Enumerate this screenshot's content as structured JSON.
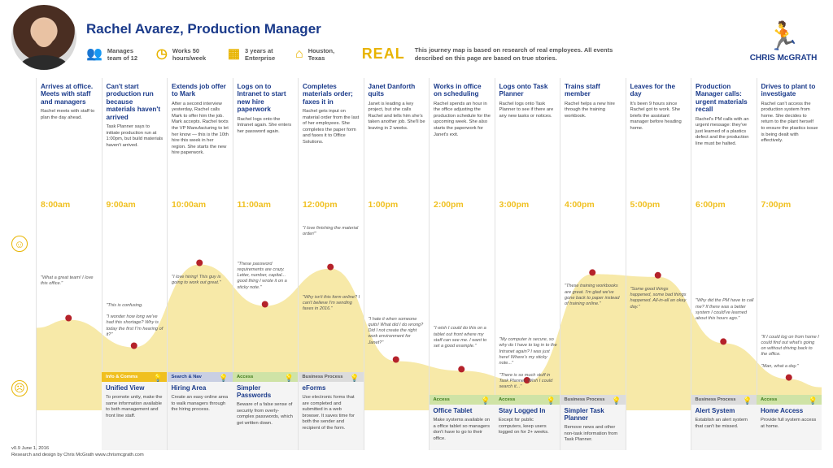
{
  "header": {
    "title": "Rachel Avarez, Production Manager",
    "stats": [
      {
        "icon": "group-icon",
        "glyph": "👥",
        "text": "Manages team of 12"
      },
      {
        "icon": "clock-icon",
        "glyph": "◷",
        "text": "Works 50 hours/week"
      },
      {
        "icon": "calendar-icon",
        "glyph": "▦",
        "text": "3 years at Enterprise"
      },
      {
        "icon": "house-icon",
        "glyph": "⌂",
        "text": "Houston, Texas"
      }
    ],
    "real_label": "REAL",
    "real_note": "This journey map is based on research of real employees. All events described on this page are based on true stories.",
    "brand": "CHRIS McGRATH"
  },
  "colors": {
    "accent": "#f0c020",
    "title": "#1a3a8a",
    "curve": "#f7e9a8",
    "dot": "#b5222a"
  },
  "columns": [
    {
      "title": "Arrives at office. Meets with staff and managers",
      "desc": "Rachel meets with staff to plan the day ahead.",
      "time": "8:00am"
    },
    {
      "title": "Can't start production run because materials haven't arrived",
      "desc": "Task Planner says to initiate production run at 1:00pm, but build materials haven't arrived.",
      "time": "9:00am"
    },
    {
      "title": "Extends job offer to Mark",
      "desc": "After a second interview yesterday, Rachel calls Mark to offer him the job. Mark accepts. Rachel texts the VP Manufacturing to let her know — this is the 10th hire this week in her region. She starts the new hire paperwork.",
      "time": "10:00am"
    },
    {
      "title": "Logs on to Intranet to start new hire paperwork",
      "desc": "Rachel logs onto the Intranet again. She enters her password again.",
      "time": "11:00am"
    },
    {
      "title": "Completes materials order; faxes it in",
      "desc": "Rachel gets input on material order from the last of her employees. She completes the paper form and faxes it to Office Solutions.",
      "time": "12:00pm"
    },
    {
      "title": "Janet Danforth quits",
      "desc": "Janet is leading a key project, but she calls Rachel and tells him she's taken another job. She'll be leaving in 2 weeks.",
      "time": "1:00pm"
    },
    {
      "title": "Works in office on scheduling",
      "desc": "Rachel spends an hour in the office adjusting the production schedule for the upcoming week. She also starts the paperwork for Janet's exit.",
      "time": "2:00pm"
    },
    {
      "title": "Logs onto Task Planner",
      "desc": "Rachel logs onto Task Planner to see if there are any new tasks or notices.",
      "time": "3:00pm"
    },
    {
      "title": "Trains staff member",
      "desc": "Rachel helps a new hire through the training workbook.",
      "time": "4:00pm"
    },
    {
      "title": "Leaves for the day",
      "desc": "It's been 9 hours since Rachel got to work. She briefs the assistant manager before heading home.",
      "time": "5:00pm"
    },
    {
      "title": "Production Manager calls: urgent materials recall",
      "desc": "Rachel's PM calls with an urgent message: they've just learned of a plastics defect and the production line must be halted.",
      "time": "6:00pm"
    },
    {
      "title": "Drives to plant to investigate",
      "desc": "Rachel can't access the production system from home. She decides to return to the plant herself to ensure the plastics issue is being dealt with effectively.",
      "time": "7:00pm"
    }
  ],
  "mood_levels": [
    0.45,
    0.25,
    0.85,
    0.55,
    0.82,
    0.15,
    0.08,
    0.0,
    0.78,
    0.76,
    0.28,
    0.02
  ],
  "quotes": [
    {
      "col": 0,
      "text": "\"What a great team! I love this office.\""
    },
    {
      "col": 1,
      "text": "\"This is confusing.\n\n\"I wonder how long we've had this shortage? Why is today the first I\"m hearing of it?\""
    },
    {
      "col": 2,
      "text": "\"I love hiring! This guy is going to work out great.\""
    },
    {
      "col": 3,
      "text": "\"These password requirements are crazy. Letter, number, capital... good thing I wrote it on a sticky note.\""
    },
    {
      "col": 4,
      "text": "\"I love finishing the material order!\""
    },
    {
      "col": 4,
      "text": "\"Why isn't this form online? I can't believe I'm sending faxes in 2016.\""
    },
    {
      "col": 5,
      "text": "\"I hate it when someone quits! What did I do wrong? Did I not create the right work environment for Janet?\""
    },
    {
      "col": 6,
      "text": "\"I wish I could do this on a tablet out front where my staff can see me. I want to set a good example.\""
    },
    {
      "col": 7,
      "text": "\"My computer is secure, so why do I have to log in to the Intranet again? I was just here! Where's my sticky note...\"\n\n\"There is so much stuff in Task Planner. Wish I could search it...\""
    },
    {
      "col": 8,
      "text": "\"These training workbooks are great. I'm glad we've gone back to paper instead of training online.\""
    },
    {
      "col": 9,
      "text": "\"Some good things happened, some bad things happened. All-in-all an okay day.\""
    },
    {
      "col": 10,
      "text": "\"Why did the PM have to call me? If there was a better system I could've learned about this hours ago.\""
    },
    {
      "col": 11,
      "text": "\"If I could log on from home I could find out what's going on without driving back to the office.\n\n\"Man, what a day.\""
    }
  ],
  "opportunities": [
    {
      "col": 1,
      "category": "Info & Comms",
      "cat_color": "#f0c020",
      "cat_text": "#ffffff",
      "title": "Unified View",
      "desc": "To promote unity, make the same information available to both management and front line staff.",
      "top": 458
    },
    {
      "col": 2,
      "category": "Search & Nav",
      "cat_color": "#c9cfe3",
      "cat_text": "#1a3a8a",
      "title": "Hiring Area",
      "desc": "Create an easy online area to walk managers through the hiring process.",
      "top": 458
    },
    {
      "col": 3,
      "category": "Access",
      "cat_color": "#cfe3a6",
      "cat_text": "#3e7a1a",
      "title": "Simpler Passwords",
      "desc": "Beware of a false sense of security from overly-complex passwords, which get written down.",
      "top": 458
    },
    {
      "col": 4,
      "category": "Business Process",
      "cat_color": "#dcdcdc",
      "cat_text": "#555555",
      "title": "eForms",
      "desc": "Use electronic forms that are completed and submitted in a web browser. It saves time for both the sender and recipient of the form.",
      "top": 458
    },
    {
      "col": 6,
      "category": "Access",
      "cat_color": "#cfe3a6",
      "cat_text": "#3e7a1a",
      "title": "Office Tablet",
      "desc": "Make systems available on a office tablet so managers don't have to go to their office.",
      "top": 486
    },
    {
      "col": 7,
      "category": "Access",
      "cat_color": "#cfe3a6",
      "cat_text": "#3e7a1a",
      "title": "Stay Logged In",
      "desc": "Except for public computers, keep users logged on for 2+ weeks.",
      "top": 486
    },
    {
      "col": 8,
      "category": "Business Process",
      "cat_color": "#dcdcdc",
      "cat_text": "#555555",
      "title": "Simpler Task Planner",
      "desc": "Remove news and other non-task information from Task Planner.",
      "top": 486
    },
    {
      "col": 10,
      "category": "Business Process",
      "cat_color": "#dcdcdc",
      "cat_text": "#555555",
      "title": "Alert System",
      "desc": "Establish an alert system that can't be missed.",
      "top": 486
    },
    {
      "col": 11,
      "category": "Access",
      "cat_color": "#cfe3a6",
      "cat_text": "#3e7a1a",
      "title": "Home Access",
      "desc": "Provide full system access at home.",
      "top": 486
    }
  ],
  "footer": {
    "version": "v0.9 June 1, 2016",
    "credit": "Research and design by Chris McGrath www.chrismcgrath.com"
  }
}
